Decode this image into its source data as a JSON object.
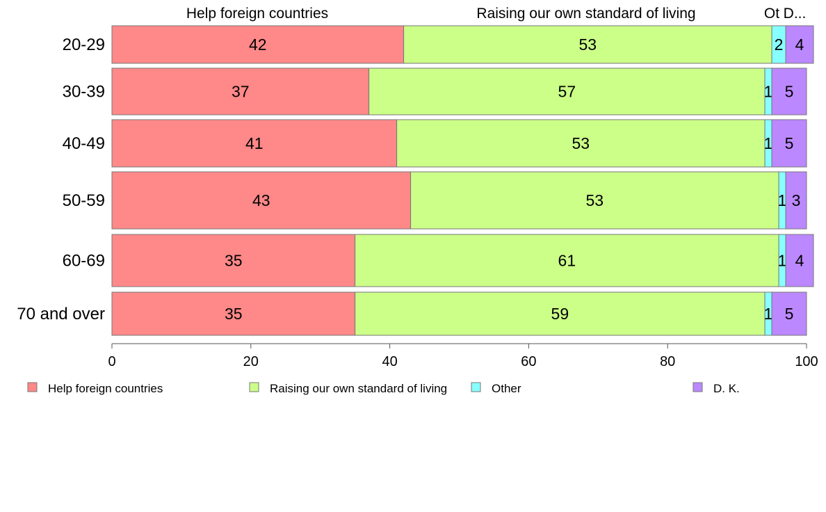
{
  "chart_data": {
    "type": "bar",
    "orientation": "horizontal",
    "stacked": true,
    "categories": [
      "20-29",
      "30-39",
      "40-49",
      "50-59",
      "60-69",
      "70 and over"
    ],
    "series": [
      {
        "name": "Help foreign countries",
        "color": "#ff8888",
        "values": [
          42,
          37,
          41,
          43,
          35,
          35
        ]
      },
      {
        "name": "Raising our own standard of living",
        "color": "#ccff88",
        "values": [
          53,
          57,
          53,
          53,
          61,
          59
        ]
      },
      {
        "name": "Other",
        "color": "#88ffff",
        "values": [
          2,
          1,
          1,
          1,
          1,
          1
        ]
      },
      {
        "name": "D. K.",
        "color": "#bb88ff",
        "values": [
          4,
          5,
          5,
          3,
          4,
          5
        ]
      }
    ],
    "top_labels": [
      "Help foreign countries",
      "Raising our own standard of living",
      "Ot",
      "D..."
    ],
    "xlim": [
      0,
      100
    ],
    "xticks": [
      0,
      20,
      40,
      60,
      80,
      100
    ],
    "xlabel": "",
    "ylabel": "",
    "title": "",
    "grid": false,
    "legend_position": "bottom",
    "legend": [
      "Help foreign countries",
      "Raising our own standard of living",
      "Other",
      "D. K."
    ]
  }
}
